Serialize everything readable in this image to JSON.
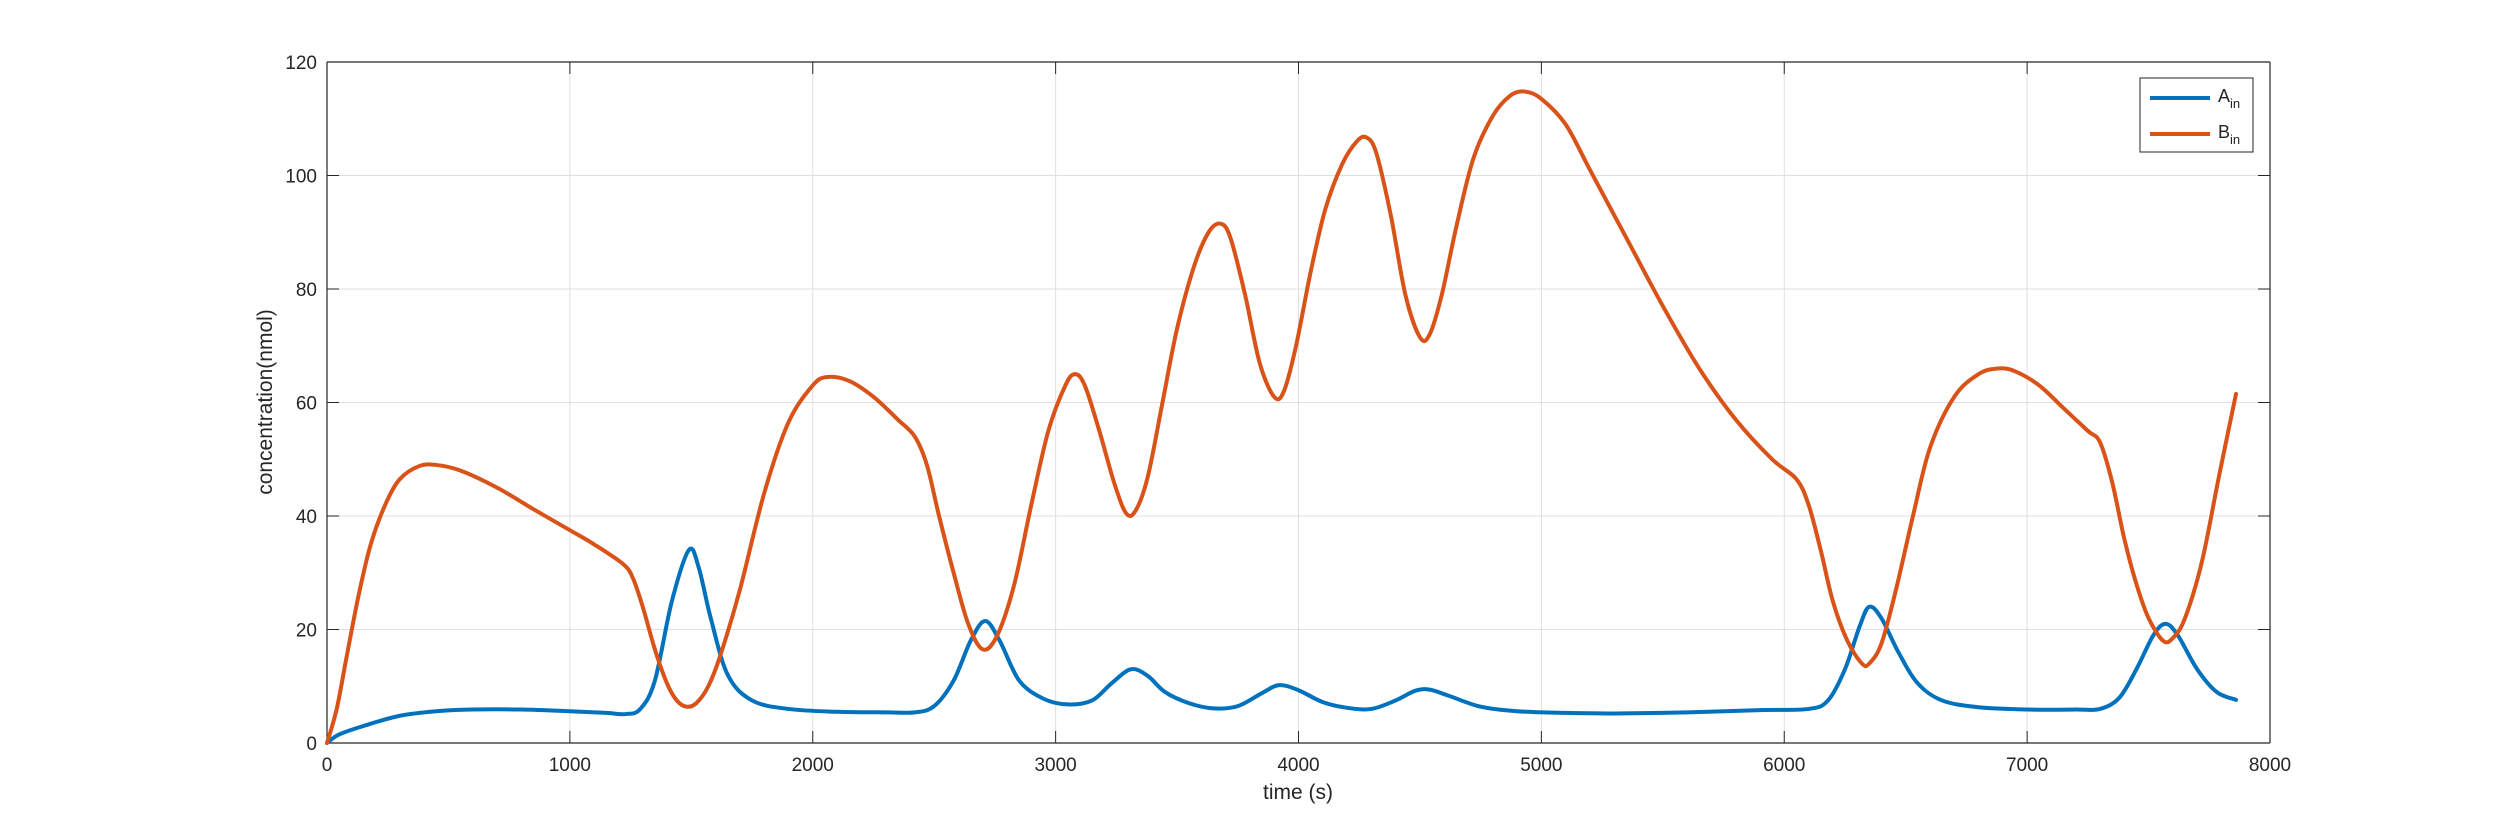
{
  "chart_data": {
    "type": "line",
    "title": "",
    "xlabel": "time (s)",
    "ylabel": "concentration(nmol)",
    "xlim": [
      0,
      8000
    ],
    "ylim": [
      0,
      120
    ],
    "xticks": [
      0,
      1000,
      2000,
      3000,
      4000,
      5000,
      6000,
      7000,
      8000
    ],
    "yticks": [
      0,
      20,
      40,
      60,
      80,
      100,
      120
    ],
    "xtick_labels": [
      "0",
      "1000",
      "2000",
      "3000",
      "4000",
      "5000",
      "6000",
      "7000",
      "8000"
    ],
    "ytick_labels": [
      "0",
      "20",
      "40",
      "60",
      "80",
      "100",
      "120"
    ],
    "grid": true,
    "legend_position": "top-right",
    "series": [
      {
        "name": "A",
        "name_subscript": "in",
        "color": "#0072BD",
        "points": [
          [
            0,
            0
          ],
          [
            50,
            1.5
          ],
          [
            150,
            3
          ],
          [
            300,
            4.8
          ],
          [
            450,
            5.6
          ],
          [
            600,
            5.9
          ],
          [
            800,
            5.9
          ],
          [
            1000,
            5.6
          ],
          [
            1150,
            5.3
          ],
          [
            1230,
            5.1
          ],
          [
            1290,
            6
          ],
          [
            1350,
            11
          ],
          [
            1420,
            25
          ],
          [
            1490,
            34
          ],
          [
            1530,
            31
          ],
          [
            1580,
            22
          ],
          [
            1650,
            12
          ],
          [
            1750,
            7.5
          ],
          [
            1900,
            6
          ],
          [
            2100,
            5.5
          ],
          [
            2300,
            5.4
          ],
          [
            2420,
            5.4
          ],
          [
            2500,
            6.5
          ],
          [
            2580,
            11
          ],
          [
            2650,
            18
          ],
          [
            2710,
            21.5
          ],
          [
            2770,
            18
          ],
          [
            2850,
            11
          ],
          [
            2950,
            7.8
          ],
          [
            3050,
            6.8
          ],
          [
            3150,
            7.5
          ],
          [
            3230,
            10.5
          ],
          [
            3310,
            13
          ],
          [
            3380,
            11.8
          ],
          [
            3450,
            9
          ],
          [
            3550,
            7
          ],
          [
            3650,
            6.1
          ],
          [
            3750,
            6.5
          ],
          [
            3850,
            8.8
          ],
          [
            3920,
            10.2
          ],
          [
            4000,
            9.3
          ],
          [
            4100,
            7.2
          ],
          [
            4200,
            6.2
          ],
          [
            4300,
            6
          ],
          [
            4400,
            7.5
          ],
          [
            4480,
            9.2
          ],
          [
            4540,
            9.4
          ],
          [
            4620,
            8.3
          ],
          [
            4750,
            6.4
          ],
          [
            4900,
            5.6
          ],
          [
            5100,
            5.3
          ],
          [
            5300,
            5.2
          ],
          [
            5600,
            5.4
          ],
          [
            5900,
            5.8
          ],
          [
            6100,
            6
          ],
          [
            6180,
            7.5
          ],
          [
            6250,
            13
          ],
          [
            6310,
            20.5
          ],
          [
            6350,
            24
          ],
          [
            6400,
            22
          ],
          [
            6470,
            16
          ],
          [
            6550,
            10.5
          ],
          [
            6650,
            7.5
          ],
          [
            6800,
            6.3
          ],
          [
            7000,
            5.9
          ],
          [
            7200,
            5.9
          ],
          [
            7300,
            6
          ],
          [
            7380,
            8
          ],
          [
            7450,
            13
          ],
          [
            7520,
            19
          ],
          [
            7570,
            21
          ],
          [
            7620,
            19
          ],
          [
            7700,
            13
          ],
          [
            7780,
            9
          ],
          [
            7860,
            7.6
          ]
        ]
      },
      {
        "name": "B",
        "name_subscript": "in",
        "color": "#D95319",
        "points": [
          [
            0,
            0
          ],
          [
            40,
            6
          ],
          [
            80,
            15
          ],
          [
            130,
            26
          ],
          [
            180,
            35
          ],
          [
            240,
            42
          ],
          [
            300,
            46.5
          ],
          [
            380,
            48.8
          ],
          [
            450,
            49
          ],
          [
            550,
            48
          ],
          [
            700,
            45
          ],
          [
            850,
            41.2
          ],
          [
            1000,
            37.5
          ],
          [
            1100,
            35
          ],
          [
            1220,
            31.5
          ],
          [
            1260,
            29
          ],
          [
            1300,
            24
          ],
          [
            1350,
            16.5
          ],
          [
            1400,
            10.5
          ],
          [
            1440,
            7.5
          ],
          [
            1480,
            6.4
          ],
          [
            1520,
            7
          ],
          [
            1570,
            10
          ],
          [
            1620,
            15.5
          ],
          [
            1700,
            27
          ],
          [
            1800,
            44
          ],
          [
            1900,
            56.5
          ],
          [
            2000,
            63
          ],
          [
            2060,
            64.5
          ],
          [
            2150,
            63.8
          ],
          [
            2250,
            61
          ],
          [
            2350,
            57
          ],
          [
            2420,
            54
          ],
          [
            2470,
            49
          ],
          [
            2520,
            40
          ],
          [
            2580,
            30
          ],
          [
            2640,
            21
          ],
          [
            2700,
            16.5
          ],
          [
            2760,
            19
          ],
          [
            2830,
            28
          ],
          [
            2900,
            42
          ],
          [
            2970,
            55
          ],
          [
            3040,
            63
          ],
          [
            3080,
            65
          ],
          [
            3120,
            63
          ],
          [
            3180,
            55
          ],
          [
            3240,
            46
          ],
          [
            3290,
            40.5
          ],
          [
            3330,
            41
          ],
          [
            3380,
            47
          ],
          [
            3440,
            60
          ],
          [
            3500,
            73
          ],
          [
            3570,
            84
          ],
          [
            3630,
            90
          ],
          [
            3680,
            91.5
          ],
          [
            3720,
            89
          ],
          [
            3780,
            79
          ],
          [
            3840,
            67
          ],
          [
            3900,
            61
          ],
          [
            3940,
            62
          ],
          [
            3990,
            70
          ],
          [
            4050,
            83
          ],
          [
            4110,
            94
          ],
          [
            4180,
            102
          ],
          [
            4240,
            106
          ],
          [
            4280,
            106.7
          ],
          [
            4320,
            104
          ],
          [
            4380,
            93
          ],
          [
            4440,
            79
          ],
          [
            4500,
            71.5
          ],
          [
            4540,
            72
          ],
          [
            4590,
            79
          ],
          [
            4650,
            91
          ],
          [
            4720,
            103
          ],
          [
            4800,
            110.5
          ],
          [
            4870,
            114
          ],
          [
            4930,
            114.8
          ],
          [
            5000,
            113.5
          ],
          [
            5100,
            109
          ],
          [
            5200,
            101
          ],
          [
            5350,
            89
          ],
          [
            5500,
            77
          ],
          [
            5650,
            66
          ],
          [
            5800,
            57
          ],
          [
            5950,
            50
          ],
          [
            6050,
            46.5
          ],
          [
            6100,
            42
          ],
          [
            6150,
            34
          ],
          [
            6200,
            25
          ],
          [
            6260,
            18
          ],
          [
            6320,
            14
          ],
          [
            6350,
            14
          ],
          [
            6400,
            17.5
          ],
          [
            6460,
            27
          ],
          [
            6530,
            40
          ],
          [
            6600,
            52
          ],
          [
            6700,
            61
          ],
          [
            6800,
            65
          ],
          [
            6880,
            66
          ],
          [
            6950,
            65.5
          ],
          [
            7050,
            63
          ],
          [
            7150,
            59
          ],
          [
            7250,
            55
          ],
          [
            7300,
            53
          ],
          [
            7350,
            46
          ],
          [
            7400,
            36
          ],
          [
            7450,
            28
          ],
          [
            7500,
            22
          ],
          [
            7560,
            18
          ],
          [
            7600,
            18.5
          ],
          [
            7650,
            22
          ],
          [
            7720,
            32
          ],
          [
            7790,
            47
          ],
          [
            7860,
            61.5
          ]
        ]
      }
    ]
  }
}
